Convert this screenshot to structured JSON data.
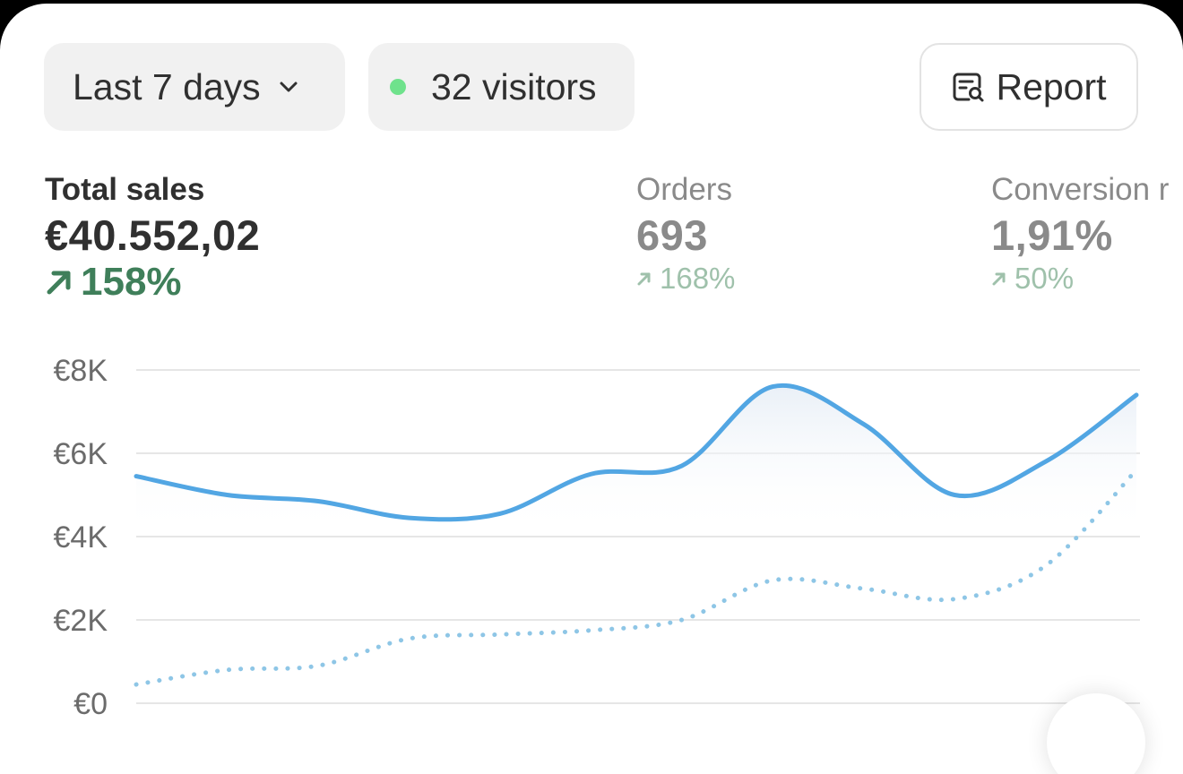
{
  "toolbar": {
    "date_range": "Last 7 days",
    "visitors": "32 visitors",
    "report_label": "Report"
  },
  "metrics": {
    "total_sales": {
      "label": "Total sales",
      "value": "€40.552,02",
      "change": "158%"
    },
    "orders": {
      "label": "Orders",
      "value": "693",
      "change": "168%"
    },
    "conversion": {
      "label": "Conversion r",
      "value": "1,91%",
      "change": "50%"
    }
  },
  "colors": {
    "accent_line": "#52a6e3",
    "comparison_line": "#8ec6e6",
    "positive": "#3f7f5a",
    "positive_muted": "#9fc1ab",
    "live_dot": "#6fe28c"
  },
  "chart_data": {
    "type": "line",
    "ylim": [
      0,
      8000
    ],
    "yticks": [
      "€0",
      "€2K",
      "€4K",
      "€6K",
      "€8K"
    ],
    "ytick_values": [
      0,
      2000,
      4000,
      6000,
      8000
    ],
    "grid": true,
    "x": [
      0,
      1,
      2,
      3,
      4,
      5,
      6,
      7,
      8,
      9,
      10,
      11
    ],
    "series": [
      {
        "style": "solid",
        "values": [
          5450,
          5000,
          4850,
          4450,
          4550,
          5500,
          5700,
          7600,
          6700,
          5000,
          5800,
          7400
        ]
      },
      {
        "style": "dotted",
        "values": [
          450,
          800,
          900,
          1550,
          1650,
          1750,
          2000,
          2950,
          2750,
          2500,
          3300,
          5600
        ]
      }
    ]
  }
}
